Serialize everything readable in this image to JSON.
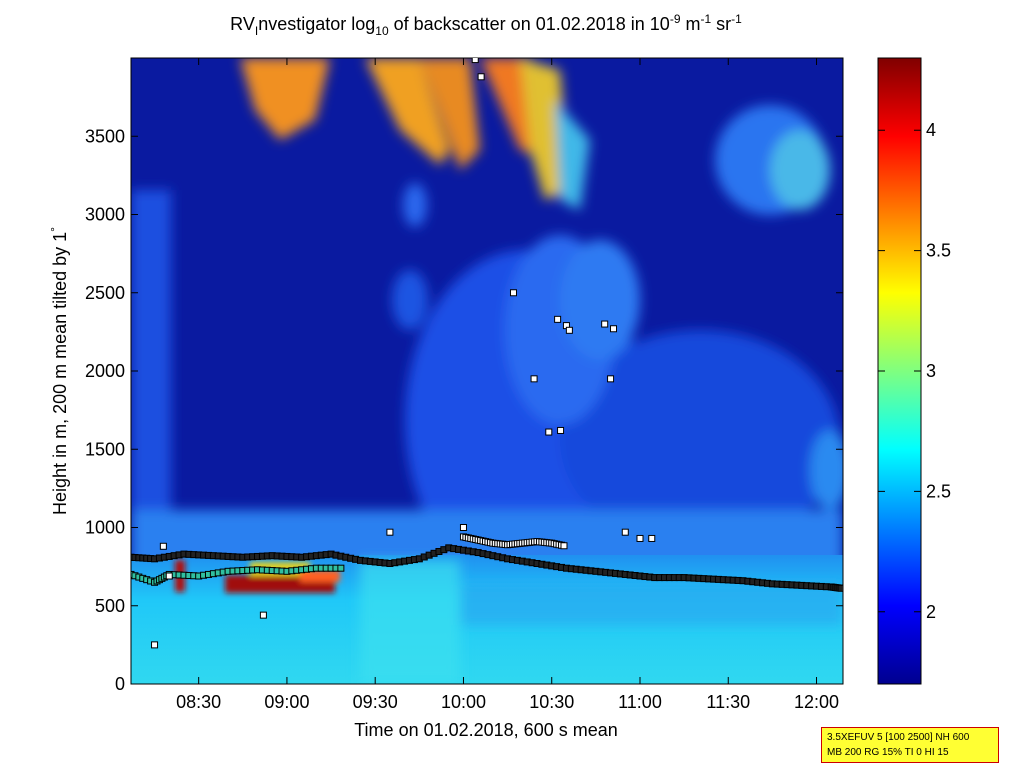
{
  "chart_data": {
    "type": "heatmap",
    "title": {
      "prefix": "RV",
      "sub1": "I",
      "part1": "nvestigator log",
      "sub2": "10",
      "part2": " of backscatter on 01.02.2018 in 10",
      "sup1": "-9",
      "part3": " m",
      "sup2": "-1",
      "part4": " sr",
      "sup3": "-1"
    },
    "xlabel": "Time on 01.02.2018, 600 s mean",
    "ylabel_main": "Height in m, 200 m mean tilted by 1",
    "ylabel_degree": "°",
    "x_ticks": [
      "08:30",
      "09:00",
      "09:30",
      "10:00",
      "10:30",
      "11:00",
      "11:30",
      "12:00"
    ],
    "x_tick_minutes": [
      510,
      540,
      570,
      600,
      630,
      660,
      690,
      720
    ],
    "xlim_minutes": [
      487,
      729
    ],
    "y_ticks": [
      "0",
      "500",
      "1000",
      "1500",
      "2000",
      "2500",
      "3000",
      "3500"
    ],
    "y_tick_values": [
      0,
      500,
      1000,
      1500,
      2000,
      2500,
      3000,
      3500
    ],
    "ylim": [
      0,
      4000
    ],
    "colorbar": {
      "ticks": [
        "2",
        "2.5",
        "3",
        "3.5",
        "4"
      ],
      "tick_values": [
        2,
        2.5,
        3,
        3.5,
        4
      ],
      "range": [
        1.7,
        4.3
      ],
      "colormap": "jet"
    },
    "cloud_base_series": {
      "name": "",
      "time_min": [
        487,
        495,
        505,
        515,
        525,
        535,
        545,
        555,
        565,
        575,
        585,
        595,
        605,
        615,
        625,
        635,
        645,
        655,
        665,
        675,
        685,
        695,
        705,
        715,
        725,
        729
      ],
      "height_m": [
        810,
        800,
        830,
        820,
        810,
        820,
        810,
        830,
        790,
        770,
        800,
        870,
        840,
        800,
        770,
        740,
        720,
        700,
        680,
        680,
        670,
        660,
        640,
        630,
        620,
        610
      ]
    },
    "upper_layer_series": {
      "name": "",
      "time_min": [
        600,
        605,
        610,
        615,
        620,
        625,
        630,
        635
      ],
      "height_m": [
        940,
        920,
        900,
        890,
        900,
        910,
        900,
        880
      ]
    },
    "low_bottom_series": {
      "name": "",
      "time_min": [
        487,
        495,
        500,
        510,
        520,
        530,
        540,
        550,
        560
      ],
      "height_m": [
        700,
        650,
        700,
        690,
        720,
        730,
        720,
        740,
        740
      ]
    },
    "scatter_points": [
      {
        "time_min": 495,
        "height_m": 250
      },
      {
        "time_min": 498,
        "height_m": 880
      },
      {
        "time_min": 500,
        "height_m": 690
      },
      {
        "time_min": 532,
        "height_m": 440
      },
      {
        "time_min": 575,
        "height_m": 970
      },
      {
        "time_min": 617,
        "height_m": 2500
      },
      {
        "time_min": 624,
        "height_m": 1950
      },
      {
        "time_min": 629,
        "height_m": 1610
      },
      {
        "time_min": 632,
        "height_m": 2330
      },
      {
        "time_min": 633,
        "height_m": 1620
      },
      {
        "time_min": 635,
        "height_m": 2290
      },
      {
        "time_min": 636,
        "height_m": 2260
      },
      {
        "time_min": 648,
        "height_m": 2300
      },
      {
        "time_min": 650,
        "height_m": 1950
      },
      {
        "time_min": 651,
        "height_m": 2270
      },
      {
        "time_min": 655,
        "height_m": 970
      },
      {
        "time_min": 660,
        "height_m": 930
      },
      {
        "time_min": 664,
        "height_m": 930
      },
      {
        "time_min": 600,
        "height_m": 1000
      },
      {
        "time_min": 604,
        "height_m": 3990
      },
      {
        "time_min": 606,
        "height_m": 3880
      }
    ],
    "grid": false,
    "legend": "none"
  },
  "info": {
    "line1": "3.5XEFUV 5 [100 2500] NH 600",
    "line2": "MB 200 RG 15% TI 0 HI 15"
  },
  "colors": {
    "background_low": "#00008f",
    "aerosol": "#20d0ff",
    "cloud": "#800000"
  }
}
